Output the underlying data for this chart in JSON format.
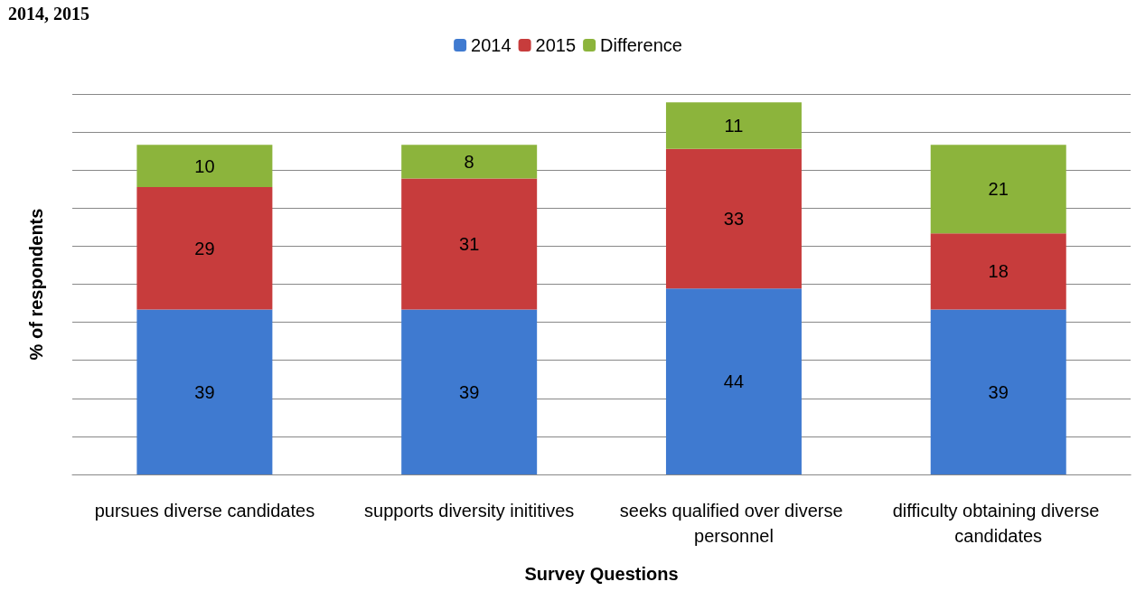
{
  "chart_data": {
    "type": "bar",
    "title": "2014, 2015",
    "xlabel": "Survey Questions",
    "ylabel": "% of respondents",
    "categories": [
      "pursues diverse candidates",
      "supports diversity inititives",
      "seeks qualified over diverse personnel",
      "difficulty obtaining diverse candidates"
    ],
    "series": [
      {
        "name": "2014",
        "color": "#3f7ad0",
        "values": [
          39,
          39,
          44,
          39
        ]
      },
      {
        "name": "2015",
        "color": "#c73c3c",
        "values": [
          29,
          31,
          33,
          18
        ]
      },
      {
        "name": "Difference",
        "color": "#8cb43c",
        "values": [
          10,
          8,
          11,
          21
        ]
      }
    ],
    "stacked": true,
    "data_labels": true,
    "legend": "top",
    "grid": "y",
    "tick_labels": "x",
    "ylim": [
      0,
      90
    ],
    "yticks": [
      {
        "value": 0,
        "label": null
      },
      {
        "value": 9,
        "label": null
      },
      {
        "value": 18,
        "label": null
      },
      {
        "value": 27,
        "label": null
      },
      {
        "value": 36,
        "label": null
      },
      {
        "value": 45,
        "label": null
      },
      {
        "value": 54,
        "label": null
      },
      {
        "value": 63,
        "label": null
      },
      {
        "value": 72,
        "label": null
      },
      {
        "value": 81,
        "label": null
      },
      {
        "value": 90,
        "label": null
      }
    ]
  }
}
